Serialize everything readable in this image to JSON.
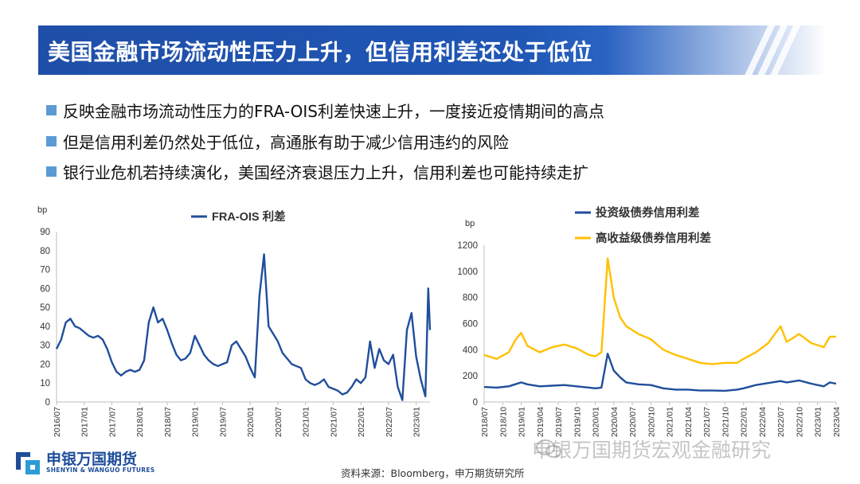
{
  "title": "美国金融市场流动性压力上升，但信用利差还处于低位",
  "bullets": [
    "反映金融市场流动性压力的FRA-OIS利差快速上升，一度接近疫情期间的高点",
    "但是信用利差仍然处于低位，高通胀有助于减少信用违约的风险",
    "银行业危机若持续演化，美国经济衰退压力上升，信用利差也可能持续走扩"
  ],
  "source": "资料来源：Bloomberg，申万期货研究所",
  "watermark": "申银万国期货宏观金融研究",
  "logo": {
    "cn": "申银万国期货",
    "en": "SHENYIN & WANGUO FUTURES"
  },
  "colors": {
    "title_bg": "#1f56b4",
    "bullet": "#5b9bd5",
    "series_navy": "#1f4e9b",
    "series_gold": "#ffc000"
  },
  "chart_data": [
    {
      "type": "line",
      "ylabel": "bp",
      "ylim": [
        0,
        90
      ],
      "yticks": [
        0,
        10,
        20,
        30,
        40,
        50,
        60,
        70,
        80,
        90
      ],
      "xlim": [
        "2016-07",
        "2023-04"
      ],
      "xticks": [
        "2016/07",
        "2017/01",
        "2017/07",
        "2018/01",
        "2018/07",
        "2019/01",
        "2019/07",
        "2020/01",
        "2020/07",
        "2021/01",
        "2021/07",
        "2022/01",
        "2022/07",
        "2023/01"
      ],
      "legend": "top-center",
      "series": [
        {
          "name": "FRA-OIS 利差",
          "color": "#1f4e9b",
          "points": [
            [
              "2016-07",
              28
            ],
            [
              "2016-08",
              33
            ],
            [
              "2016-09",
              42
            ],
            [
              "2016-10",
              44
            ],
            [
              "2016-11",
              40
            ],
            [
              "2016-12",
              39
            ],
            [
              "2017-01",
              37
            ],
            [
              "2017-02",
              35
            ],
            [
              "2017-03",
              34
            ],
            [
              "2017-04",
              35
            ],
            [
              "2017-05",
              33
            ],
            [
              "2017-06",
              28
            ],
            [
              "2017-07",
              21
            ],
            [
              "2017-08",
              16
            ],
            [
              "2017-09",
              14
            ],
            [
              "2017-10",
              16
            ],
            [
              "2017-11",
              17
            ],
            [
              "2017-12",
              16
            ],
            [
              "2018-01",
              17
            ],
            [
              "2018-02",
              22
            ],
            [
              "2018-03",
              42
            ],
            [
              "2018-04",
              50
            ],
            [
              "2018-05",
              42
            ],
            [
              "2018-06",
              44
            ],
            [
              "2018-07",
              38
            ],
            [
              "2018-08",
              31
            ],
            [
              "2018-09",
              25
            ],
            [
              "2018-10",
              22
            ],
            [
              "2018-11",
              23
            ],
            [
              "2018-12",
              26
            ],
            [
              "2019-01",
              35
            ],
            [
              "2019-02",
              30
            ],
            [
              "2019-03",
              25
            ],
            [
              "2019-04",
              22
            ],
            [
              "2019-05",
              20
            ],
            [
              "2019-06",
              19
            ],
            [
              "2019-07",
              20
            ],
            [
              "2019-08",
              21
            ],
            [
              "2019-09",
              30
            ],
            [
              "2019-10",
              32
            ],
            [
              "2019-11",
              28
            ],
            [
              "2019-12",
              24
            ],
            [
              "2020-01",
              18
            ],
            [
              "2020-02",
              13
            ],
            [
              "2020-03",
              56
            ],
            [
              "2020-04",
              78
            ],
            [
              "2020-05",
              40
            ],
            [
              "2020-06",
              36
            ],
            [
              "2020-07",
              32
            ],
            [
              "2020-08",
              26
            ],
            [
              "2020-09",
              23
            ],
            [
              "2020-10",
              20
            ],
            [
              "2020-11",
              19
            ],
            [
              "2020-12",
              18
            ],
            [
              "2021-01",
              12
            ],
            [
              "2021-02",
              10
            ],
            [
              "2021-03",
              9
            ],
            [
              "2021-04",
              10
            ],
            [
              "2021-05",
              12
            ],
            [
              "2021-06",
              8
            ],
            [
              "2021-07",
              7
            ],
            [
              "2021-08",
              6
            ],
            [
              "2021-09",
              4
            ],
            [
              "2021-10",
              5
            ],
            [
              "2021-11",
              8
            ],
            [
              "2021-12",
              12
            ],
            [
              "2022-01",
              10
            ],
            [
              "2022-02",
              13
            ],
            [
              "2022-03",
              32
            ],
            [
              "2022-04",
              18
            ],
            [
              "2022-05",
              28
            ],
            [
              "2022-06",
              22
            ],
            [
              "2022-07",
              20
            ],
            [
              "2022-08",
              25
            ],
            [
              "2022-09",
              8
            ],
            [
              "2022-10",
              1
            ],
            [
              "2022-11",
              38
            ],
            [
              "2022-12",
              47
            ],
            [
              "2023-01",
              24
            ],
            [
              "2023-02",
              12
            ],
            [
              "2023-03",
              3
            ],
            [
              "2023-03-20",
              60
            ],
            [
              "2023-04",
              38
            ]
          ]
        }
      ]
    },
    {
      "type": "line",
      "ylabel": "bp",
      "ylim": [
        0,
        1200
      ],
      "yticks": [
        0,
        200,
        400,
        600,
        800,
        1000,
        1200
      ],
      "xlim": [
        "2018-07",
        "2023-04"
      ],
      "xticks": [
        "2018/07",
        "2018/10",
        "2019/01",
        "2019/04",
        "2019/07",
        "2019/10",
        "2020/01",
        "2020/04",
        "2020/07",
        "2020/10",
        "2021/01",
        "2021/04",
        "2021/07",
        "2021/10",
        "2022/01",
        "2022/04",
        "2022/07",
        "2022/10",
        "2023/01",
        "2023/04"
      ],
      "legend": "top-center",
      "series": [
        {
          "name": "投资级债券信用利差",
          "color": "#1f4e9b",
          "points": [
            [
              "2018-07",
              115
            ],
            [
              "2018-09",
              110
            ],
            [
              "2018-11",
              120
            ],
            [
              "2018-12",
              135
            ],
            [
              "2019-01",
              150
            ],
            [
              "2019-02",
              135
            ],
            [
              "2019-04",
              120
            ],
            [
              "2019-06",
              125
            ],
            [
              "2019-08",
              130
            ],
            [
              "2019-10",
              120
            ],
            [
              "2019-12",
              110
            ],
            [
              "2020-01",
              105
            ],
            [
              "2020-02",
              110
            ],
            [
              "2020-03",
              370
            ],
            [
              "2020-04",
              240
            ],
            [
              "2020-05",
              190
            ],
            [
              "2020-06",
              150
            ],
            [
              "2020-08",
              135
            ],
            [
              "2020-10",
              130
            ],
            [
              "2020-12",
              105
            ],
            [
              "2021-02",
              95
            ],
            [
              "2021-04",
              95
            ],
            [
              "2021-06",
              88
            ],
            [
              "2021-08",
              88
            ],
            [
              "2021-10",
              86
            ],
            [
              "2021-12",
              95
            ],
            [
              "2022-01",
              105
            ],
            [
              "2022-03",
              130
            ],
            [
              "2022-05",
              145
            ],
            [
              "2022-07",
              160
            ],
            [
              "2022-08",
              150
            ],
            [
              "2022-10",
              165
            ],
            [
              "2022-12",
              140
            ],
            [
              "2023-02",
              120
            ],
            [
              "2023-03",
              150
            ],
            [
              "2023-04",
              140
            ]
          ]
        },
        {
          "name": "高收益级债券信用利差",
          "color": "#ffc000",
          "points": [
            [
              "2018-07",
              360
            ],
            [
              "2018-09",
              330
            ],
            [
              "2018-11",
              380
            ],
            [
              "2018-12",
              470
            ],
            [
              "2019-01",
              530
            ],
            [
              "2019-02",
              430
            ],
            [
              "2019-04",
              380
            ],
            [
              "2019-06",
              420
            ],
            [
              "2019-08",
              440
            ],
            [
              "2019-10",
              410
            ],
            [
              "2019-12",
              360
            ],
            [
              "2020-01",
              350
            ],
            [
              "2020-02",
              380
            ],
            [
              "2020-03",
              1100
            ],
            [
              "2020-04",
              800
            ],
            [
              "2020-05",
              650
            ],
            [
              "2020-06",
              580
            ],
            [
              "2020-08",
              520
            ],
            [
              "2020-10",
              480
            ],
            [
              "2020-12",
              400
            ],
            [
              "2021-02",
              360
            ],
            [
              "2021-04",
              330
            ],
            [
              "2021-06",
              300
            ],
            [
              "2021-08",
              290
            ],
            [
              "2021-10",
              300
            ],
            [
              "2021-12",
              300
            ],
            [
              "2022-01",
              330
            ],
            [
              "2022-03",
              380
            ],
            [
              "2022-05",
              450
            ],
            [
              "2022-07",
              580
            ],
            [
              "2022-08",
              460
            ],
            [
              "2022-10",
              520
            ],
            [
              "2022-12",
              450
            ],
            [
              "2023-02",
              420
            ],
            [
              "2023-03",
              500
            ],
            [
              "2023-04",
              500
            ]
          ]
        }
      ]
    }
  ]
}
